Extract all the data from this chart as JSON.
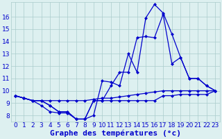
{
  "xlabel": "Graphe des températures (°c)",
  "x": [
    0,
    1,
    2,
    3,
    4,
    5,
    6,
    7,
    8,
    9,
    10,
    11,
    12,
    13,
    14,
    15,
    16,
    17,
    18,
    19,
    20,
    21,
    22,
    23
  ],
  "curve_top": [
    9.6,
    9.4,
    9.2,
    9.2,
    8.8,
    8.3,
    8.3,
    7.7,
    7.7,
    8.0,
    10.8,
    10.7,
    10.4,
    13.0,
    11.5,
    15.9,
    17.0,
    16.3,
    14.6,
    12.7,
    11.0,
    11.0,
    10.4,
    10.0
  ],
  "curve_mid": [
    9.6,
    9.4,
    9.2,
    9.2,
    8.8,
    8.3,
    8.3,
    7.7,
    7.7,
    9.2,
    9.2,
    10.4,
    11.5,
    11.5,
    14.3,
    14.4,
    14.3,
    16.2,
    12.2,
    12.7,
    11.0,
    11.0,
    10.4,
    10.0
  ],
  "curve_flat": [
    9.6,
    9.4,
    9.2,
    9.2,
    9.2,
    9.2,
    9.2,
    9.2,
    9.2,
    9.3,
    9.4,
    9.4,
    9.5,
    9.6,
    9.7,
    9.8,
    9.9,
    10.0,
    10.0,
    10.0,
    10.0,
    10.0,
    10.0,
    10.0
  ],
  "curve_dip": [
    9.6,
    9.4,
    9.2,
    8.8,
    8.3,
    8.2,
    8.2,
    7.7,
    7.7,
    9.2,
    9.2,
    9.2,
    9.2,
    9.2,
    9.2,
    9.2,
    9.2,
    9.6,
    9.6,
    9.7,
    9.7,
    9.7,
    9.7,
    10.0
  ],
  "line_color": "#0000cc",
  "bg_color": "#ddf0f0",
  "grid_color": "#aacccc",
  "ylim_min": 7.5,
  "ylim_max": 17.2,
  "yticks": [
    8,
    9,
    10,
    11,
    12,
    13,
    14,
    15,
    16
  ],
  "xticks": [
    0,
    1,
    2,
    3,
    4,
    5,
    6,
    7,
    8,
    9,
    10,
    11,
    12,
    13,
    14,
    15,
    16,
    17,
    18,
    19,
    20,
    21,
    22,
    23
  ],
  "tick_fontsize": 6.5,
  "xlabel_fontsize": 8,
  "lw": 0.9,
  "ms": 2.5
}
